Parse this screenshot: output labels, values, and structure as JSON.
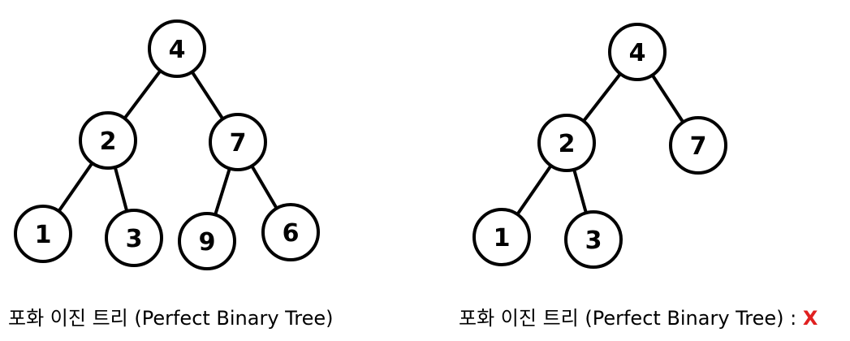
{
  "colors": {
    "stroke": "#000000",
    "fill": "#ffffff",
    "mark": "#e02020"
  },
  "left_tree": {
    "nodes": [
      {
        "id": "n4",
        "label": "4"
      },
      {
        "id": "n2",
        "label": "2"
      },
      {
        "id": "n7",
        "label": "7"
      },
      {
        "id": "n1",
        "label": "1"
      },
      {
        "id": "n3",
        "label": "3"
      },
      {
        "id": "n9",
        "label": "9"
      },
      {
        "id": "n6",
        "label": "6"
      }
    ],
    "edges": [
      [
        "n4",
        "n2"
      ],
      [
        "n4",
        "n7"
      ],
      [
        "n2",
        "n1"
      ],
      [
        "n2",
        "n3"
      ],
      [
        "n7",
        "n9"
      ],
      [
        "n7",
        "n6"
      ]
    ],
    "caption": "포화 이진 트리 (Perfect Binary Tree)"
  },
  "right_tree": {
    "nodes": [
      {
        "id": "m4",
        "label": "4"
      },
      {
        "id": "m2",
        "label": "2"
      },
      {
        "id": "m7",
        "label": "7"
      },
      {
        "id": "m1",
        "label": "1"
      },
      {
        "id": "m3",
        "label": "3"
      }
    ],
    "edges": [
      [
        "m4",
        "m2"
      ],
      [
        "m4",
        "m7"
      ],
      [
        "m2",
        "m1"
      ],
      [
        "m2",
        "m3"
      ]
    ],
    "caption": "포화 이진 트리 (Perfect Binary Tree) :",
    "verdict": "X"
  }
}
